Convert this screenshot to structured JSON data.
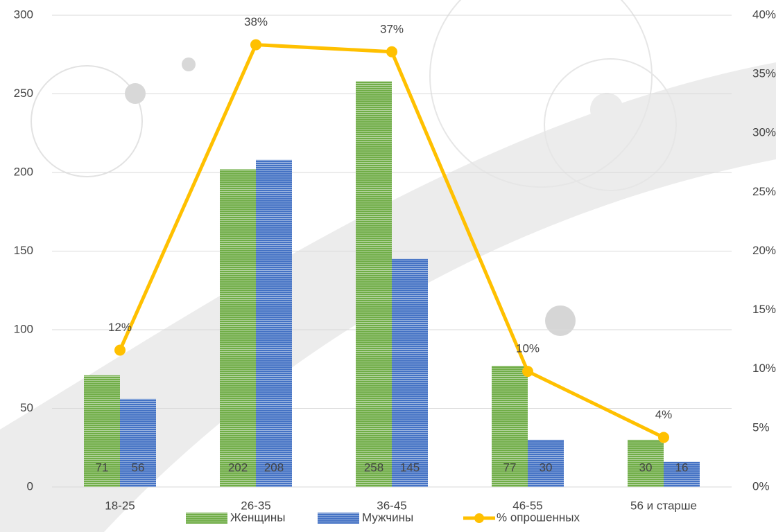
{
  "chart_data": {
    "type": "bar",
    "categories": [
      "18-25",
      "26-35",
      "36-45",
      "46-55",
      "56 и старше"
    ],
    "series": [
      {
        "name": "Женщины",
        "color": "#70ad47",
        "values": [
          71,
          202,
          258,
          77,
          30
        ]
      },
      {
        "name": "Мужчины",
        "color": "#4472c4",
        "values": [
          56,
          208,
          145,
          30,
          16
        ]
      },
      {
        "name": "% опрошенных",
        "type": "line",
        "axis": "y2",
        "color": "#ffc000",
        "values": [
          11.6,
          37.5,
          36.9,
          9.8,
          4.2
        ],
        "value_labels": [
          "12%",
          "38%",
          "37%",
          "10%",
          "4%"
        ]
      }
    ],
    "ylim": [
      0,
      300
    ],
    "yticks": [
      0,
      50,
      100,
      150,
      200,
      250,
      300
    ],
    "y2lim": [
      0,
      40
    ],
    "y2ticks": [
      {
        "value": 0,
        "label": "0%"
      },
      {
        "value": 5,
        "label": "5%"
      },
      {
        "value": 10,
        "label": "10%"
      },
      {
        "value": 15,
        "label": "15%"
      },
      {
        "value": 20,
        "label": "20%"
      },
      {
        "value": 25,
        "label": "25%"
      },
      {
        "value": 30,
        "label": "30%"
      },
      {
        "value": 35,
        "label": "35%"
      },
      {
        "value": 40,
        "label": "40%"
      }
    ],
    "grid": true,
    "legend": "bottom"
  }
}
